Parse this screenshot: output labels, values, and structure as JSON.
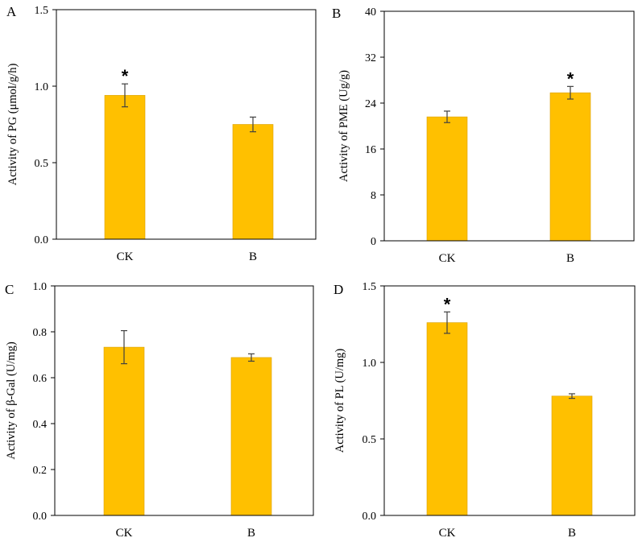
{
  "colors": {
    "bar": "#FFC000",
    "bar_edge": "#D9A000",
    "axis": "#000000"
  },
  "chart_data": [
    {
      "id": "A",
      "panel_label": "A",
      "type": "bar",
      "ylabel": "Activity of PG (μmol/g/h)",
      "categories": [
        "CK",
        "B"
      ],
      "values": [
        0.94,
        0.75
      ],
      "errors": [
        0.075,
        0.048
      ],
      "significance": [
        "*",
        ""
      ],
      "ylim": [
        0,
        1.5
      ],
      "yticks": [
        0.0,
        0.5,
        1.0,
        1.5
      ],
      "ytick_labels": [
        "0.0",
        "0.5",
        "1.0",
        "1.5"
      ]
    },
    {
      "id": "B",
      "panel_label": "B",
      "type": "bar",
      "ylabel": "Activity of PME (Ug/g)",
      "categories": [
        "CK",
        "B"
      ],
      "values": [
        21.6,
        25.8
      ],
      "errors": [
        1.0,
        1.1
      ],
      "significance": [
        "",
        "*"
      ],
      "ylim": [
        0,
        40
      ],
      "yticks": [
        0,
        8,
        16,
        24,
        32,
        40
      ],
      "ytick_labels": [
        "0",
        "8",
        "16",
        "24",
        "32",
        "40"
      ]
    },
    {
      "id": "C",
      "panel_label": "C",
      "type": "bar",
      "ylabel": "Activity of β-Gal (U/mg)",
      "categories": [
        "CK",
        "B"
      ],
      "values": [
        0.733,
        0.688
      ],
      "errors": [
        0.072,
        0.016
      ],
      "significance": [
        "",
        ""
      ],
      "ylim": [
        0,
        1.0
      ],
      "yticks": [
        0.0,
        0.2,
        0.4,
        0.6,
        0.8,
        1.0
      ],
      "ytick_labels": [
        "0.0",
        "0.2",
        "0.4",
        "0.6",
        "0.8",
        "1.0"
      ]
    },
    {
      "id": "D",
      "panel_label": "D",
      "type": "bar",
      "ylabel": "Activity of PL (U/mg)",
      "categories": [
        "CK",
        "B"
      ],
      "values": [
        1.26,
        0.78
      ],
      "errors": [
        0.07,
        0.015
      ],
      "significance": [
        "*",
        ""
      ],
      "ylim": [
        0,
        1.5
      ],
      "yticks": [
        0.0,
        0.5,
        1.0,
        1.5
      ],
      "ytick_labels": [
        "0.0",
        "0.5",
        "1.0",
        "1.5"
      ]
    }
  ]
}
